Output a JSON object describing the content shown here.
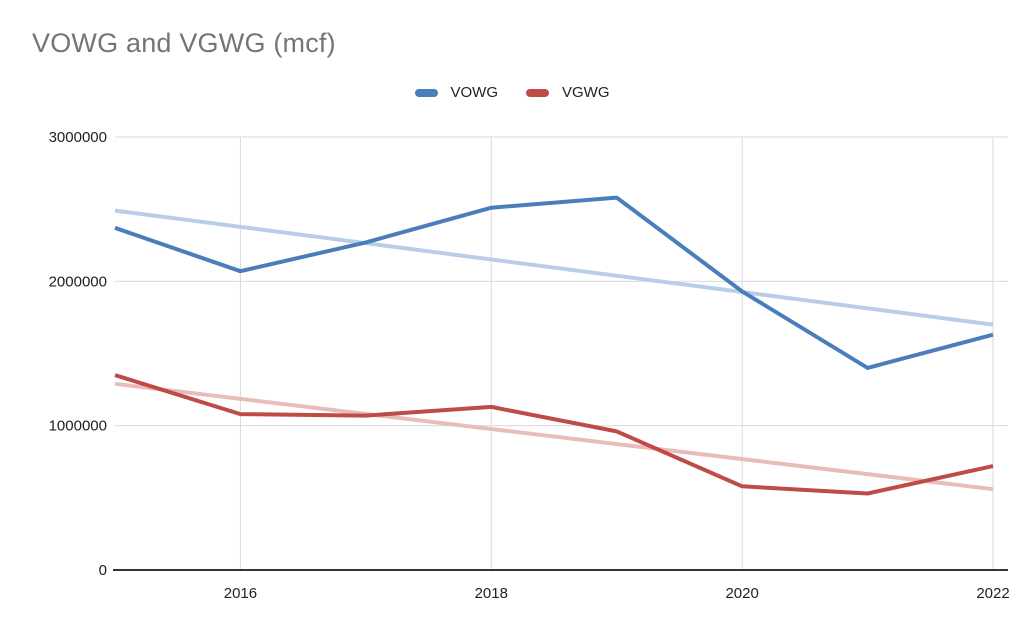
{
  "page": {
    "background": "#ffffff"
  },
  "chart_data": {
    "type": "line",
    "title": "VOWG and VGWG (mcf)",
    "title_color": "#757575",
    "x": [
      2015,
      2016,
      2017,
      2018,
      2019,
      2020,
      2021,
      2022
    ],
    "xlim": [
      2015,
      2022
    ],
    "ylim": [
      0,
      3000000
    ],
    "xticks": [
      2016,
      2018,
      2020,
      2022
    ],
    "yticks": [
      0,
      1000000,
      2000000,
      3000000
    ],
    "grid": true,
    "grid_color": "#d9d9d9",
    "axis_color": "#333333",
    "tick_label_color": "#212121",
    "legend_text_color": "#212121",
    "legend_position": "top-center",
    "xlabel": "",
    "ylabel": "",
    "series": [
      {
        "name": "VOWG",
        "color": "#4a7ebb",
        "values": [
          2370000,
          2070000,
          2270000,
          2510000,
          2580000,
          1930000,
          1400000,
          1630000
        ]
      },
      {
        "name": "VGWG",
        "color": "#bf4b47",
        "values": [
          1350000,
          1080000,
          1070000,
          1130000,
          960000,
          580000,
          530000,
          720000
        ]
      }
    ],
    "trendlines": [
      {
        "series": "VOWG",
        "color": "#b8cde8",
        "start": 2490000,
        "end": 1700000
      },
      {
        "series": "VGWG",
        "color": "#e9bcba",
        "start": 1290000,
        "end": 560000
      }
    ]
  }
}
